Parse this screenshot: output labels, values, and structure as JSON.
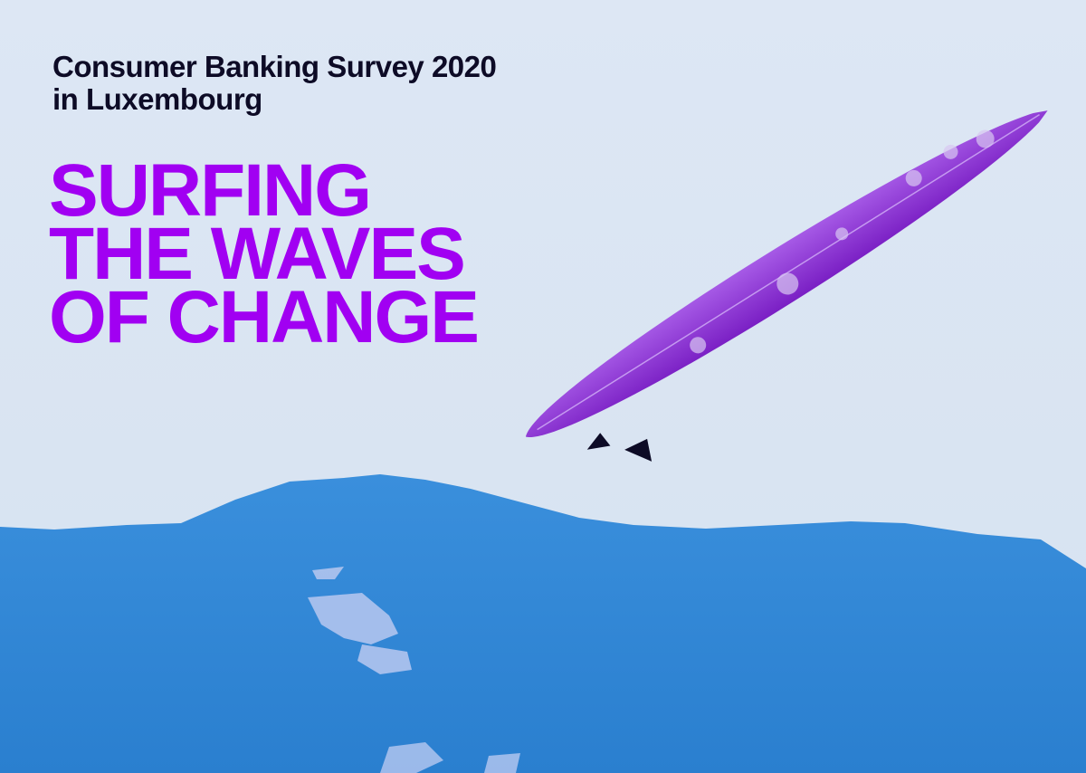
{
  "cover": {
    "subtitle_line1": "Consumer Banking Survey 2020",
    "subtitle_line2": "in Luxembourg",
    "headline": [
      "SURFING",
      "THE WAVES",
      "OF CHANGE"
    ]
  },
  "colors": {
    "accent": "#a100f2",
    "text_dark": "#0d0b26",
    "sky": "#dde7f4",
    "sea": "#2f86d6",
    "surfboard": "#8a2ad0"
  }
}
